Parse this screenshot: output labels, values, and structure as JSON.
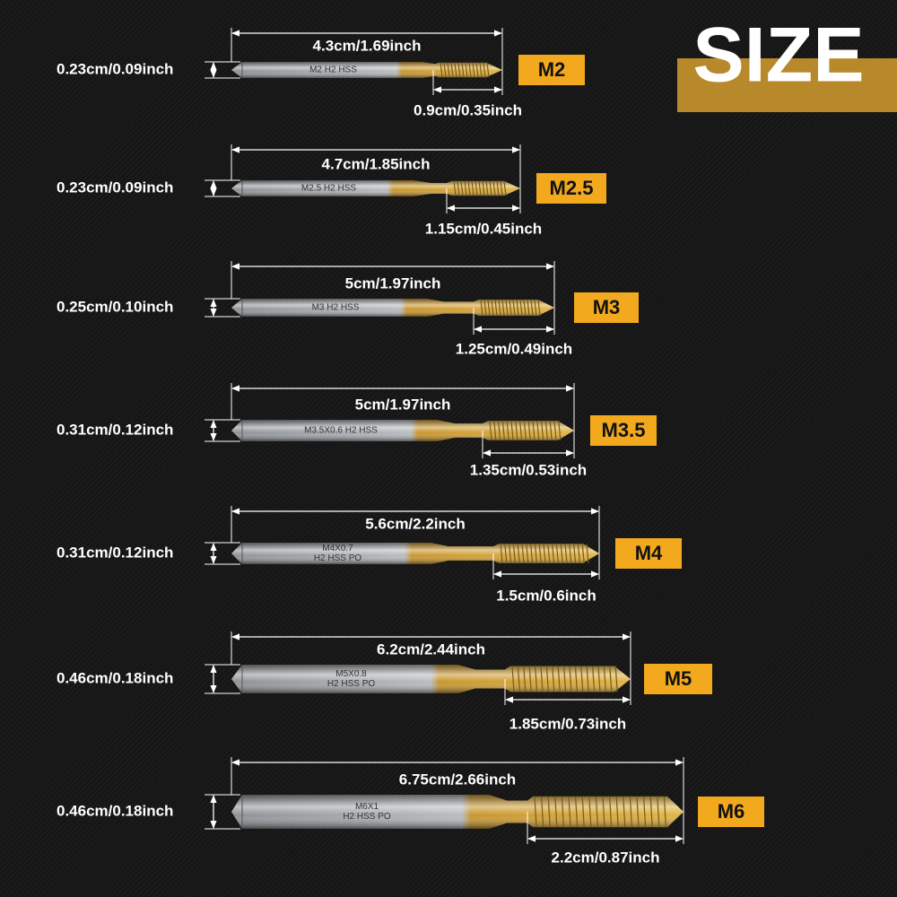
{
  "header": {
    "title": "SIZE"
  },
  "taps": [
    {
      "size": "M2",
      "length": "4.3cm/1.69inch",
      "diameter": "0.23cm/0.09inch",
      "thread_length": "0.9cm/0.35inch",
      "engraving": [
        "M2 H2 HSS"
      ]
    },
    {
      "size": "M2.5",
      "length": "4.7cm/1.85inch",
      "diameter": "0.23cm/0.09inch",
      "thread_length": "1.15cm/0.45inch",
      "engraving": [
        "M2.5 H2 HSS"
      ]
    },
    {
      "size": "M3",
      "length": "5cm/1.97inch",
      "diameter": "0.25cm/0.10inch",
      "thread_length": "1.25cm/0.49inch",
      "engraving": [
        "M3 H2 HSS"
      ]
    },
    {
      "size": "M3.5",
      "length": "5cm/1.97inch",
      "diameter": "0.31cm/0.12inch",
      "thread_length": "1.35cm/0.53inch",
      "engraving": [
        "M3.5X0.6 H2 HSS"
      ]
    },
    {
      "size": "M4",
      "length": "5.6cm/2.2inch",
      "diameter": "0.31cm/0.12inch",
      "thread_length": "1.5cm/0.6inch",
      "engraving": [
        "M4X0.7",
        "H2 HSS PO"
      ]
    },
    {
      "size": "M5",
      "length": "6.2cm/2.44inch",
      "diameter": "0.46cm/0.18inch",
      "thread_length": "1.85cm/0.73inch",
      "engraving": [
        "M5X0.8",
        "H2 HSS PO"
      ]
    },
    {
      "size": "M6",
      "length": "6.75cm/2.66inch",
      "diameter": "0.46cm/0.18inch",
      "thread_length": "2.2cm/0.87inch",
      "engraving": [
        "M6X1",
        "H2 HSS PO"
      ]
    }
  ]
}
